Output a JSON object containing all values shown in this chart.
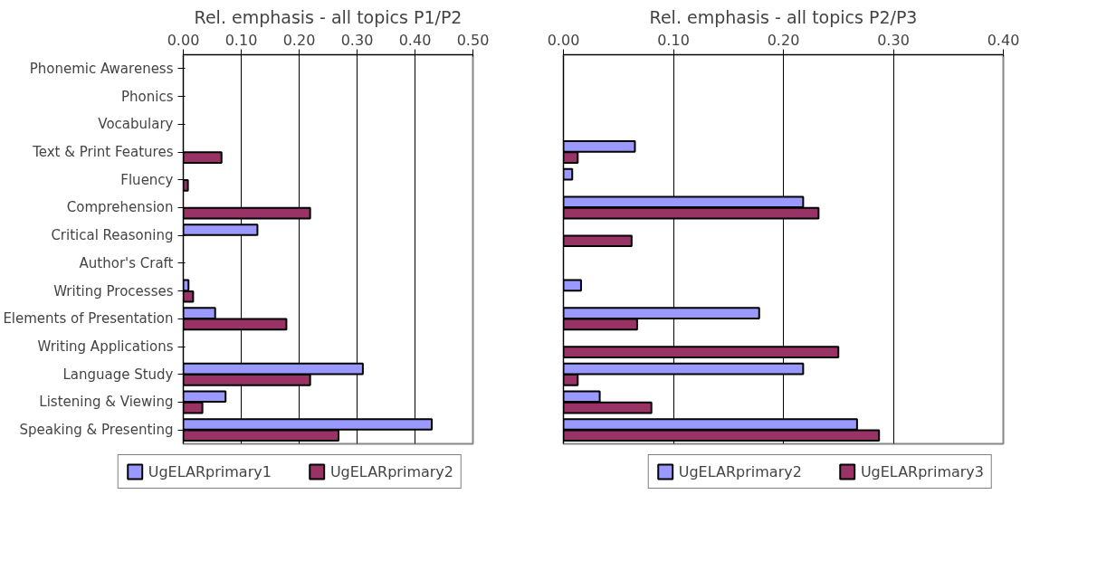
{
  "chart_data": [
    {
      "type": "bar",
      "orientation": "horizontal",
      "title": "Rel. emphasis - all topics P1/P2",
      "categories": [
        "Phonemic Awareness",
        "Phonics",
        "Vocabulary",
        "Text & Print Features",
        "Fluency",
        "Comprehension",
        "Critical Reasoning",
        "Author's Craft",
        "Writing Processes",
        "Elements of Presentation",
        "Writing Applications",
        "Language Study",
        "Listening & Viewing",
        "Speaking & Presenting"
      ],
      "series": [
        {
          "name": "UgELARprimary1",
          "color": "#9999ff",
          "values": [
            null,
            null,
            null,
            null,
            null,
            null,
            0.128,
            null,
            0.009,
            0.055,
            null,
            0.31,
            0.073,
            0.429
          ]
        },
        {
          "name": "UgELARprimary2",
          "color": "#993366",
          "values": [
            null,
            null,
            null,
            0.066,
            0.008,
            0.219,
            null,
            null,
            0.017,
            0.178,
            null,
            0.219,
            0.033,
            0.268
          ]
        }
      ],
      "xlim": [
        0,
        0.5
      ],
      "xticks": [
        {
          "value": 0,
          "label": "0.00"
        },
        {
          "value": 0.1,
          "label": "0.10"
        },
        {
          "value": 0.2,
          "label": "0.20"
        },
        {
          "value": 0.3,
          "label": "0.30"
        },
        {
          "value": 0.4,
          "label": "0.40"
        },
        {
          "value": 0.5,
          "label": "0.50"
        }
      ],
      "grid": "x",
      "legend": "bottom"
    },
    {
      "type": "bar",
      "orientation": "horizontal",
      "title": "Rel. emphasis - all topics P2/P3",
      "categories": [
        null,
        null,
        null,
        null,
        null,
        null,
        null,
        null,
        null,
        null,
        null,
        null,
        null,
        null
      ],
      "series": [
        {
          "name": "UgELARprimary2",
          "color": "#9999ff",
          "values": [
            null,
            null,
            null,
            0.065,
            0.008,
            0.218,
            null,
            null,
            0.016,
            0.178,
            null,
            0.218,
            0.033,
            0.267
          ]
        },
        {
          "name": "UgELARprimary3",
          "color": "#993366",
          "values": [
            null,
            null,
            null,
            0.013,
            null,
            0.232,
            0.062,
            null,
            null,
            0.067,
            0.25,
            0.013,
            0.08,
            0.287
          ]
        }
      ],
      "xlim": [
        0,
        0.4
      ],
      "xticks": [
        {
          "value": 0,
          "label": "0.00"
        },
        {
          "value": 0.1,
          "label": "0.10"
        },
        {
          "value": 0.2,
          "label": "0.20"
        },
        {
          "value": 0.3,
          "label": "0.30"
        },
        {
          "value": 0.4,
          "label": "0.40"
        }
      ],
      "grid": "x",
      "legend": "bottom",
      "tick_labels": "x"
    }
  ]
}
